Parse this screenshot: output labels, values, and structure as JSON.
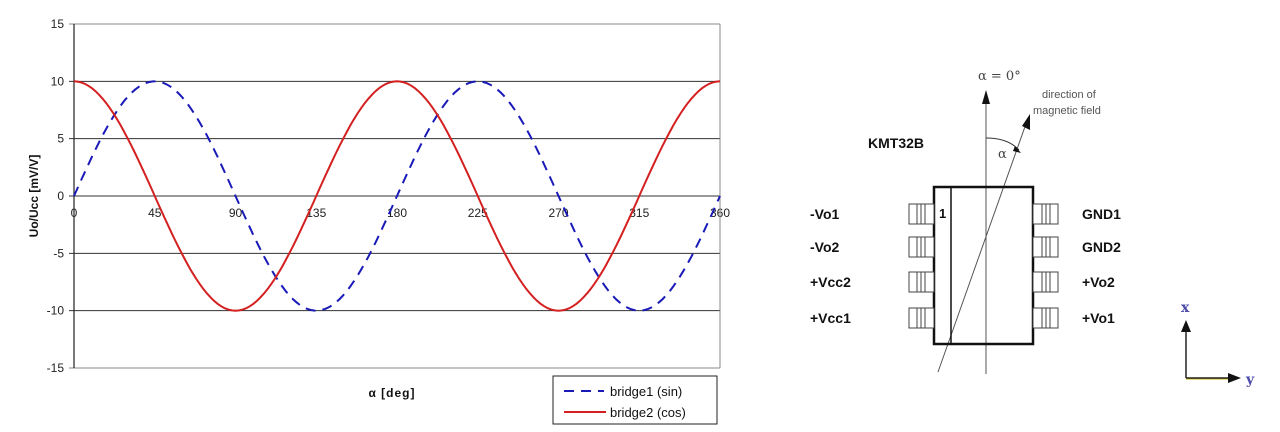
{
  "chart_data": {
    "type": "line",
    "title": "",
    "xlabel": "α [deg]",
    "ylabel": "Uo/Ucc [mV/V]",
    "x_ticks": [
      "0",
      "45",
      "90",
      "135",
      "180",
      "225",
      "270",
      "315",
      "360"
    ],
    "y_ticks": [
      "15",
      "10",
      "5",
      "0",
      "-5",
      "-10",
      "-15"
    ],
    "xlim": [
      0,
      360
    ],
    "ylim": [
      -15,
      15
    ],
    "grid": "horizontal",
    "legend_position": "bottom-right",
    "x": [
      0,
      22.5,
      45,
      67.5,
      90,
      112.5,
      135,
      157.5,
      180,
      202.5,
      225,
      247.5,
      270,
      292.5,
      315,
      337.5,
      360
    ],
    "series": [
      {
        "name": "bridge1 (sin)",
        "style": "dashed",
        "color": "#1a1ab8",
        "formula": "10*sin(2*alpha)",
        "values": [
          0,
          7.07,
          10,
          7.07,
          0,
          -7.07,
          -10,
          -7.07,
          0,
          7.07,
          10,
          7.07,
          0,
          -7.07,
          -10,
          -7.07,
          0
        ]
      },
      {
        "name": "bridge2 (cos)",
        "style": "solid",
        "color": "#d42020",
        "formula": "10*cos(2*alpha)",
        "values": [
          10,
          7.07,
          0,
          -7.07,
          -10,
          -7.07,
          0,
          7.07,
          10,
          7.07,
          0,
          -7.07,
          -10,
          -7.07,
          0,
          7.07,
          10
        ]
      }
    ]
  },
  "diagram": {
    "part_name": "KMT32B",
    "angle_ref_label": "α = 0°",
    "angle_label": "α",
    "field_label_line1": "direction of",
    "field_label_line2": "magnetic field",
    "pin1_marker": "1",
    "left_pins": [
      "-Vo1",
      "-Vo2",
      "+Vcc2",
      "+Vcc1"
    ],
    "right_pins": [
      "GND1",
      "GND2",
      "+Vo2",
      "+Vo1"
    ],
    "axes": {
      "x_label": "x",
      "y_label": "y"
    }
  }
}
